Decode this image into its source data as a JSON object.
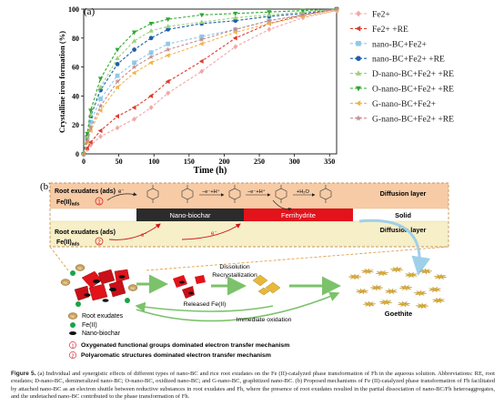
{
  "panel_a": {
    "label": "(a)",
    "chart_data": {
      "type": "line",
      "xlabel": "Time (h)",
      "ylabel": "Crystalline iron formation (%)",
      "xlim": [
        0,
        360
      ],
      "ylim": [
        0,
        100
      ],
      "xticks": [
        0,
        50,
        100,
        150,
        200,
        250,
        300,
        350
      ],
      "yticks": [
        0,
        20,
        40,
        60,
        80,
        100
      ],
      "legend_position": "right",
      "series": [
        {
          "name": "Fe2+",
          "color": "#f4a6a6",
          "marker": "diamond",
          "dash": "3,2",
          "x": [
            0,
            5,
            10,
            24,
            48,
            72,
            96,
            120,
            168,
            216,
            264,
            312,
            360
          ],
          "y": [
            0,
            3,
            6,
            12,
            18,
            24,
            32,
            42,
            57,
            74,
            86,
            94,
            99
          ]
        },
        {
          "name": "Fe2+ +RE",
          "color": "#e03a2c",
          "marker": "triangle-left",
          "dash": "3,2",
          "x": [
            0,
            5,
            10,
            24,
            48,
            72,
            96,
            120,
            168,
            216,
            264,
            312,
            360
          ],
          "y": [
            0,
            4,
            8,
            16,
            26,
            32,
            40,
            50,
            64,
            80,
            90,
            96,
            100
          ]
        },
        {
          "name": "nano-BC+Fe2+",
          "color": "#8fc9ea",
          "marker": "square",
          "dash": "3,2",
          "x": [
            0,
            5,
            10,
            24,
            48,
            72,
            96,
            120,
            168,
            216,
            264,
            312,
            360
          ],
          "y": [
            0,
            10,
            22,
            38,
            54,
            63,
            70,
            76,
            81,
            86,
            92,
            96,
            100
          ]
        },
        {
          "name": "nano-BC+Fe2+ +RE",
          "color": "#1f5fa8",
          "marker": "circle",
          "dash": "3,2",
          "x": [
            0,
            5,
            10,
            24,
            48,
            72,
            96,
            120,
            168,
            216,
            264,
            312,
            360
          ],
          "y": [
            0,
            12,
            26,
            44,
            62,
            72,
            80,
            86,
            90,
            92,
            95,
            97,
            100
          ]
        },
        {
          "name": "D-nano-BC+Fe2+ +RE",
          "color": "#9bd17a",
          "marker": "triangle-up",
          "dash": "3,2",
          "x": [
            0,
            5,
            10,
            24,
            48,
            72,
            96,
            120,
            168,
            216,
            264,
            312,
            360
          ],
          "y": [
            0,
            12,
            27,
            46,
            66,
            78,
            85,
            88,
            91,
            94,
            96,
            98,
            100
          ]
        },
        {
          "name": "O-nano-BC+Fe2+ +RE",
          "color": "#2fa832",
          "marker": "triangle-down",
          "dash": "3,2",
          "x": [
            0,
            5,
            10,
            24,
            48,
            72,
            96,
            120,
            168,
            216,
            264,
            312,
            360
          ],
          "y": [
            0,
            14,
            30,
            52,
            72,
            84,
            90,
            93,
            96,
            97,
            98,
            99,
            100
          ]
        },
        {
          "name": "G-nano-BC+Fe2+",
          "color": "#f0b54a",
          "marker": "triangle-left",
          "dash": "3,2",
          "x": [
            0,
            5,
            10,
            24,
            48,
            72,
            96,
            120,
            168,
            216,
            264,
            312,
            360
          ],
          "y": [
            0,
            8,
            16,
            30,
            46,
            56,
            63,
            68,
            76,
            84,
            90,
            95,
            99
          ]
        },
        {
          "name": "G-nano-BC+Fe2+ +RE",
          "color": "#c98a8a",
          "marker": "star",
          "dash": "3,2",
          "x": [
            0,
            5,
            10,
            24,
            48,
            72,
            96,
            120,
            168,
            216,
            264,
            312,
            360
          ],
          "y": [
            0,
            9,
            18,
            33,
            50,
            60,
            67,
            72,
            79,
            86,
            92,
            96,
            100
          ]
        }
      ]
    }
  },
  "panel_b": {
    "label": "(b)",
    "root_exudates_ads_1": "Root exudates (ads)",
    "fe_ads_1": "Fe(II)",
    "fe_ads_sub": "ads",
    "mech_num_1": "1",
    "root_exudates_ads_2": "Root exudates (ads)",
    "fe_ads_2": "Fe(II)",
    "mech_num_2": "2",
    "e_minus": "e⁻",
    "e_h_plus": "−e⁻+H⁺",
    "h2o_plus": "+H₂O",
    "diffusion_layer_top": "Diffusion layer",
    "solid": "Solid",
    "diffusion_layer_bottom": "Diffusion layer",
    "nano_biochar_bar": "Nano-biochar",
    "ferrihydrite_bar": "Ferrihydrite",
    "dissolution": "Dissolution",
    "recrystallization": "Recrystallization",
    "released_fe": "Released Fe(II)",
    "immediate_oxidation": "Immediate oxidation",
    "goethite": "Goethite",
    "legend_root_exudates": "Root exudates",
    "legend_fe": "Fe(II)",
    "legend_nano_biochar": "Nano-biochar",
    "re_token": "RE",
    "legend_mech_1": "Oxygenated functional groups dominated electron transfer mechanism",
    "legend_mech_2": "Polyaromatic structures  dominated electron transfer mechanism"
  },
  "caption": {
    "lead": "Figure 5.",
    "text": " (a) Individual and synergistic effects of different types of nano-BC and rice root exudates on the Fe (II)-catalyzed phase transformation of Fh in the aqueous solution. Abbreviations: RE, root exudates; D-nano-BC, demineralized nano-BC; O-nano-BC, oxidized nano-BC; and G-nano-BC, graphitized nano-BC. (b) Proposed mechanisms of Fe (II)-catalyzed phase transformation of Fh facilitated by attached nano-BC as an electron shuttle between reductive substances in root exudates and Fh, where the presence of root exudates resulted in the partial dissociation of nano-BC/Fh heteroaggregates, and the undetached nano-BC contributed to the phase transformation of Fh."
  },
  "colors": {
    "diffusion_top": "#f7cba6",
    "diffusion_bottom": "#f6efc7",
    "nano_biochar": "#2b2b2b",
    "ferrihydrite": "#e2131b",
    "arrow_green": "#7cc26b",
    "red_arrow": "#d0141b",
    "goethite": "#e7b83a"
  }
}
